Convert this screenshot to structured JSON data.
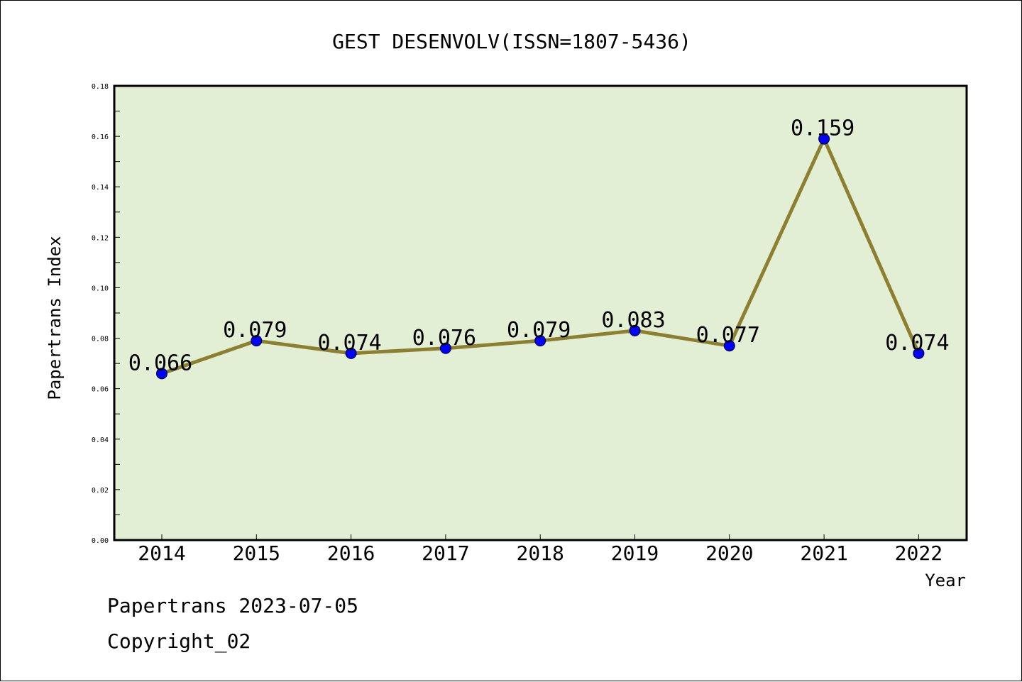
{
  "chart_data": {
    "type": "line",
    "title": "GEST DESENVOLV(ISSN=1807-5436)",
    "xlabel": "Year",
    "ylabel": "Papertrans Index",
    "x": [
      "2014",
      "2015",
      "2016",
      "2017",
      "2018",
      "2019",
      "2020",
      "2021",
      "2022"
    ],
    "values": [
      0.066,
      0.079,
      0.074,
      0.076,
      0.079,
      0.083,
      0.077,
      0.159,
      0.074
    ],
    "data_labels": [
      "0.066",
      "0.079",
      "0.074",
      "0.076",
      "0.079",
      "0.083",
      "0.077",
      "0.159",
      "0.074"
    ],
    "ylim": [
      0,
      0.18
    ],
    "yticks": [
      "0.00",
      "0.02",
      "0.04",
      "0.06",
      "0.08",
      "0.10",
      "0.12",
      "0.14",
      "0.16",
      "0.18"
    ],
    "grid": false,
    "colors": {
      "plot_bg": "#e2efd4",
      "line": "#8c8030",
      "marker": "#0000ff"
    }
  },
  "footer": {
    "date_text": "Papertrans 2023-07-05",
    "copyright_text": "Copyright_02"
  }
}
